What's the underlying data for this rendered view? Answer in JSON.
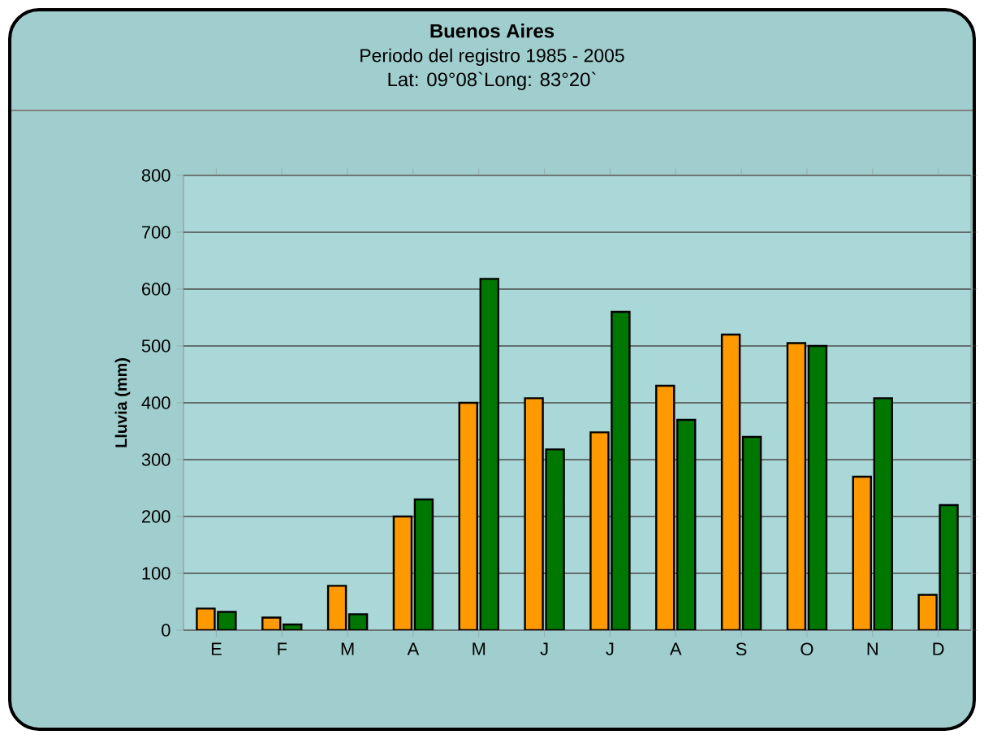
{
  "chart_data": {
    "type": "bar",
    "title": "Buenos Aires",
    "subtitle": "Periodo del registro 1985 - 2005",
    "annotations": [
      "Lat: 09°08`Long: 83°20`"
    ],
    "ylabel": "Lluvia (mm)",
    "categories": [
      "E",
      "F",
      "M",
      "A",
      "M",
      "J",
      "J",
      "A",
      "S",
      "O",
      "N",
      "D"
    ],
    "series": [
      {
        "color": "#ff9900",
        "values": [
          38,
          22,
          78,
          200,
          400,
          408,
          348,
          430,
          520,
          505,
          270,
          62
        ]
      },
      {
        "color": "#007700",
        "values": [
          32,
          10,
          28,
          230,
          618,
          318,
          560,
          370,
          340,
          500,
          408,
          220
        ]
      }
    ],
    "ylim": [
      0,
      800
    ],
    "yticks": [
      0,
      100,
      200,
      300,
      400,
      500,
      600,
      700,
      800
    ],
    "grid": "y"
  }
}
